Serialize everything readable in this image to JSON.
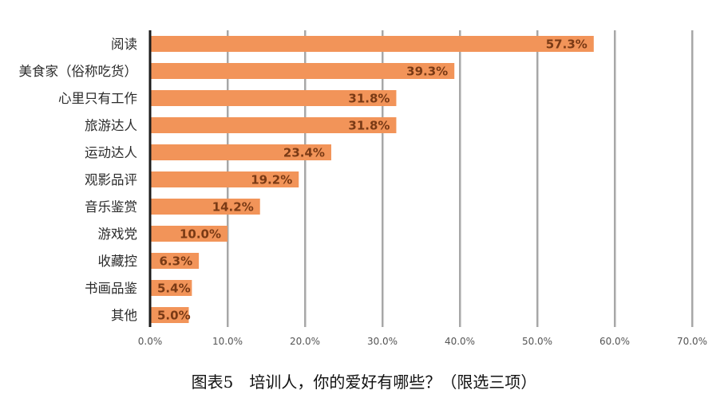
{
  "chart_data": {
    "type": "bar",
    "orientation": "horizontal",
    "categories": [
      "阅读",
      "美食家（俗称吃货）",
      "心里只有工作",
      "旅游达人",
      "运动达人",
      "观影品评",
      "音乐鉴赏",
      "游戏党",
      "收藏控",
      "书画品鉴",
      "其他"
    ],
    "values": [
      57.3,
      39.3,
      31.8,
      31.8,
      23.4,
      19.2,
      14.2,
      10.0,
      6.3,
      5.4,
      5.0
    ],
    "data_labels": [
      "57.3%",
      "39.3%",
      "31.8%",
      "31.8%",
      "23.4%",
      "19.2%",
      "14.2%",
      "10.0%",
      "6.3%",
      "5.4%",
      "5.0%"
    ],
    "xlim": [
      0,
      70
    ],
    "x_ticks": [
      0,
      10,
      20,
      30,
      40,
      50,
      60,
      70
    ],
    "x_tick_labels": [
      "0.0%",
      "10.0%",
      "20.0%",
      "30.0%",
      "40.0%",
      "50.0%",
      "60.0%",
      "70.0%"
    ],
    "grid": true,
    "xlabel": "",
    "ylabel": ""
  },
  "caption": "图表5　培训人，你的爱好有哪些？（限选三项）",
  "colors": {
    "bar": "#F29459",
    "data_label": "#7A3A15",
    "axis_line": "#1C1C1C",
    "gridline": "#8C8C8C",
    "gridline_shadow": "#D6D6D6",
    "category_label": "#2B2B2B",
    "tick_label": "#555555",
    "caption": "#111111"
  }
}
